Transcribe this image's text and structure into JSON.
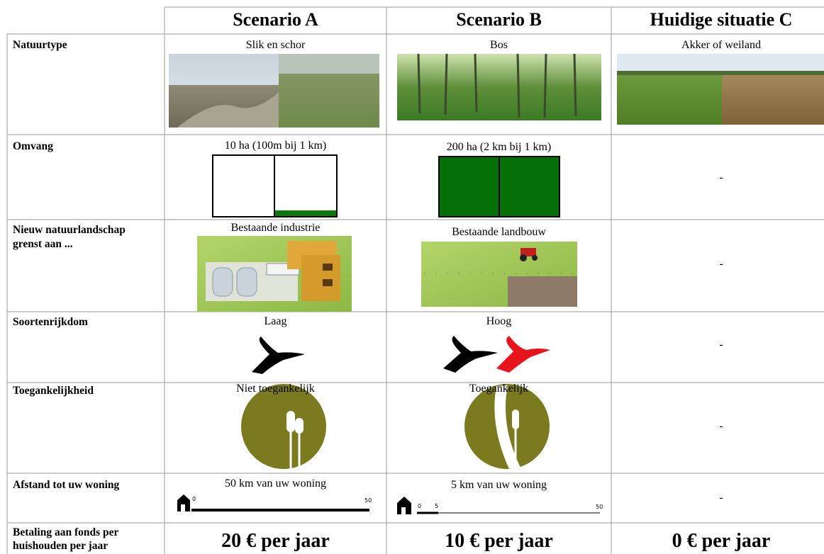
{
  "table": {
    "columns": [
      "Scenario A",
      "Scenario B",
      "Huidige situatie C"
    ],
    "rows": [
      {
        "label": "Natuurtype",
        "cells": [
          "Slik en schor",
          "Bos",
          "Akker of weiland"
        ]
      },
      {
        "label": "Omvang",
        "cells": [
          "10 ha (100m bij 1 km)",
          "200 ha (2 km bij 1 km)",
          "-"
        ]
      },
      {
        "label": "Nieuw natuurlandschap grenst aan ...",
        "cells": [
          "Bestaande industrie",
          "Bestaande landbouw",
          "-"
        ]
      },
      {
        "label": "Soortenrijkdom",
        "cells": [
          "Laag",
          "Hoog",
          "-"
        ]
      },
      {
        "label": "Toegankelijkheid",
        "cells": [
          "Niet toegankelijk",
          "Toegankelijk",
          "-"
        ]
      },
      {
        "label": "Afstand tot uw woning",
        "cells": [
          "50 km van uw woning",
          "5 km van uw woning",
          "-"
        ]
      },
      {
        "label": "Betaling aan fonds per huishouden per jaar",
        "cells": [
          "20 € per jaar",
          "10 € per jaar",
          "0 € per jaar"
        ]
      }
    ],
    "distance_scales": [
      {
        "ticks": [
          "0",
          "50"
        ]
      },
      {
        "ticks": [
          "0",
          "5",
          "50"
        ]
      }
    ]
  }
}
